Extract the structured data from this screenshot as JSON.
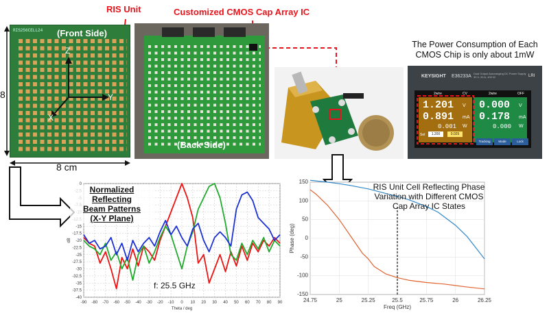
{
  "labels": {
    "ris_unit": "RIS Unit",
    "cmos_ic": "Customized CMOS Cap Array IC",
    "power_title_line1": "The Power Consumption of Each",
    "power_title_line2": "CMOS Chip is only about 1mW",
    "front_side": "(Front Side)",
    "back_side": "(Back Side)",
    "dim_height": "8",
    "dim_width": "8 cm",
    "board_code": "RIS256CELL24",
    "axis_x": "X",
    "axis_y": "Y",
    "axis_z": "Z"
  },
  "power_supply": {
    "brand": "KEYSIGHT",
    "model": "E36233A",
    "desc_line1": "Dual Output Autoranging DC Power Supply",
    "desc_line2": "30 V, 20 A, 400 W",
    "ch1_label": "2wire",
    "ch1_mode": "CV",
    "ch1_voltage": "1.201",
    "ch1_current": "0.891",
    "ch1_power": "0.001",
    "ch1_set_v": "1.200",
    "ch1_set_i": "0.025",
    "ch2_label": "2wire",
    "ch2_state": "OFF",
    "ch2_voltage": "0.000",
    "ch2_current": "0.178",
    "ch2_power": "0.000",
    "unit_v": "V",
    "unit_ma": "mA",
    "unit_w": "W",
    "btn_set": "Set",
    "btn_track": "Tracking",
    "btn_mode": "Mode",
    "btn_lock": "Lock",
    "lri": "LRI"
  },
  "beam_chart": {
    "title_line1": "Normalized Reflecting",
    "title_line2": "Beam Patterns",
    "title_line3": "(X-Y Plane)",
    "freq_note": "f: 25.5 GHz",
    "xlabel": "Theta / deg",
    "ylabel": "dB"
  },
  "phase_chart": {
    "title_line1": "RIS Unit Cell Reflecting Phase",
    "title_line2": "Variation with Different CMOS",
    "title_line3": "Cap Array IC States",
    "xlabel": "Freq (GHz)",
    "ylabel": "Phase (deg)"
  },
  "chart_data": [
    {
      "type": "line",
      "xlabel": "Theta / deg",
      "ylabel": "dB",
      "xlim": [
        -90,
        90
      ],
      "ylim": [
        -40,
        0
      ],
      "x_ticks": [
        "-90",
        "-80",
        "-70",
        "-60",
        "-50",
        "-40",
        "-30",
        "-20",
        "-10",
        "0",
        "10",
        "20",
        "30",
        "40",
        "50",
        "60",
        "70",
        "80",
        "90"
      ],
      "y_ticks": [
        "0",
        "-2.5",
        "-5",
        "-7.5",
        "-10",
        "-12.5",
        "-15",
        "-17.5",
        "-20",
        "-22.5",
        "-25",
        "-27.5",
        "-30",
        "-32.5",
        "-35",
        "-37.5",
        "-40"
      ],
      "grid": true,
      "series": [
        {
          "color": "#ee1111",
          "x": [
            -90,
            -85,
            -80,
            -75,
            -70,
            -65,
            -60,
            -55,
            -50,
            -45,
            -40,
            -35,
            -30,
            -25,
            -20,
            -15,
            -10,
            -5,
            0,
            5,
            10,
            15,
            20,
            25,
            30,
            35,
            40,
            45,
            50,
            55,
            60,
            65,
            70,
            75,
            80,
            85,
            90
          ],
          "y": [
            -19,
            -21,
            -22,
            -28,
            -24,
            -30,
            -37,
            -26,
            -30,
            -23,
            -29,
            -22,
            -24,
            -27,
            -20,
            -15,
            -10,
            -5,
            0,
            -5,
            -12,
            -28,
            -25,
            -35,
            -30,
            -25,
            -31,
            -24,
            -29,
            -22,
            -27,
            -21,
            -24,
            -20,
            -22,
            -19,
            -21
          ]
        },
        {
          "color": "#1faa2b",
          "x": [
            -90,
            -85,
            -80,
            -75,
            -70,
            -65,
            -60,
            -55,
            -50,
            -45,
            -40,
            -35,
            -30,
            -25,
            -20,
            -15,
            -10,
            -5,
            0,
            5,
            10,
            15,
            20,
            25,
            30,
            35,
            40,
            45,
            50,
            55,
            60,
            65,
            70,
            75,
            80,
            85,
            90
          ],
          "y": [
            -20,
            -22,
            -23,
            -25,
            -21,
            -27,
            -24,
            -30,
            -26,
            -34,
            -25,
            -22,
            -28,
            -24,
            -19,
            -15,
            -18,
            -24,
            -30,
            -22,
            -17,
            -9,
            -5,
            -1,
            0,
            -5,
            -14,
            -25,
            -27,
            -21,
            -25,
            -20,
            -23,
            -19,
            -24,
            -20,
            -22
          ]
        },
        {
          "color": "#1a2fd6",
          "x": [
            -90,
            -85,
            -80,
            -75,
            -70,
            -65,
            -60,
            -55,
            -50,
            -45,
            -40,
            -35,
            -30,
            -25,
            -20,
            -15,
            -10,
            -5,
            0,
            5,
            10,
            15,
            20,
            25,
            30,
            35,
            40,
            45,
            50,
            55,
            60,
            65,
            70,
            75,
            80,
            85,
            90
          ],
          "y": [
            -18,
            -21,
            -20,
            -23,
            -22,
            -19,
            -25,
            -21,
            -27,
            -20,
            -24,
            -21,
            -19,
            -22,
            -17,
            -13,
            -18,
            -15,
            -19,
            -22,
            -16,
            -14,
            -20,
            -24,
            -19,
            -17,
            -19,
            -22,
            -9,
            -4,
            -3,
            -6,
            -12,
            -14,
            -16,
            -20,
            -18
          ]
        }
      ]
    },
    {
      "type": "line",
      "xlabel": "Freq (GHz)",
      "ylabel": "Phase (deg)",
      "xlim": [
        24.75,
        26.25
      ],
      "ylim": [
        -150,
        150
      ],
      "x_ticks": [
        "24.75",
        "25",
        "25.25",
        "25.5",
        "25.75",
        "26",
        "26.25"
      ],
      "y_ticks": [
        "150",
        "100",
        "50",
        "0",
        "-50",
        "-100",
        "-150"
      ],
      "grid": true,
      "marker_x": 25.5,
      "series": [
        {
          "color": "#2f86c8",
          "x": [
            24.75,
            24.9,
            25.0,
            25.1,
            25.25,
            25.4,
            25.5,
            25.6,
            25.75,
            25.85,
            26.0,
            26.1,
            26.2,
            26.25
          ],
          "y": [
            155,
            150,
            146,
            141,
            132,
            120,
            112,
            103,
            85,
            70,
            35,
            5,
            -35,
            -55
          ]
        },
        {
          "color": "#e0622f",
          "x": [
            24.75,
            24.8,
            24.9,
            25.0,
            25.1,
            25.2,
            25.25,
            25.3,
            25.4,
            25.5,
            25.6,
            25.75,
            25.9,
            26.0,
            26.1,
            26.25
          ],
          "y": [
            130,
            118,
            88,
            50,
            5,
            -40,
            -55,
            -75,
            -95,
            -105,
            -112,
            -118,
            -122,
            -126,
            -130,
            -135
          ]
        }
      ]
    }
  ]
}
